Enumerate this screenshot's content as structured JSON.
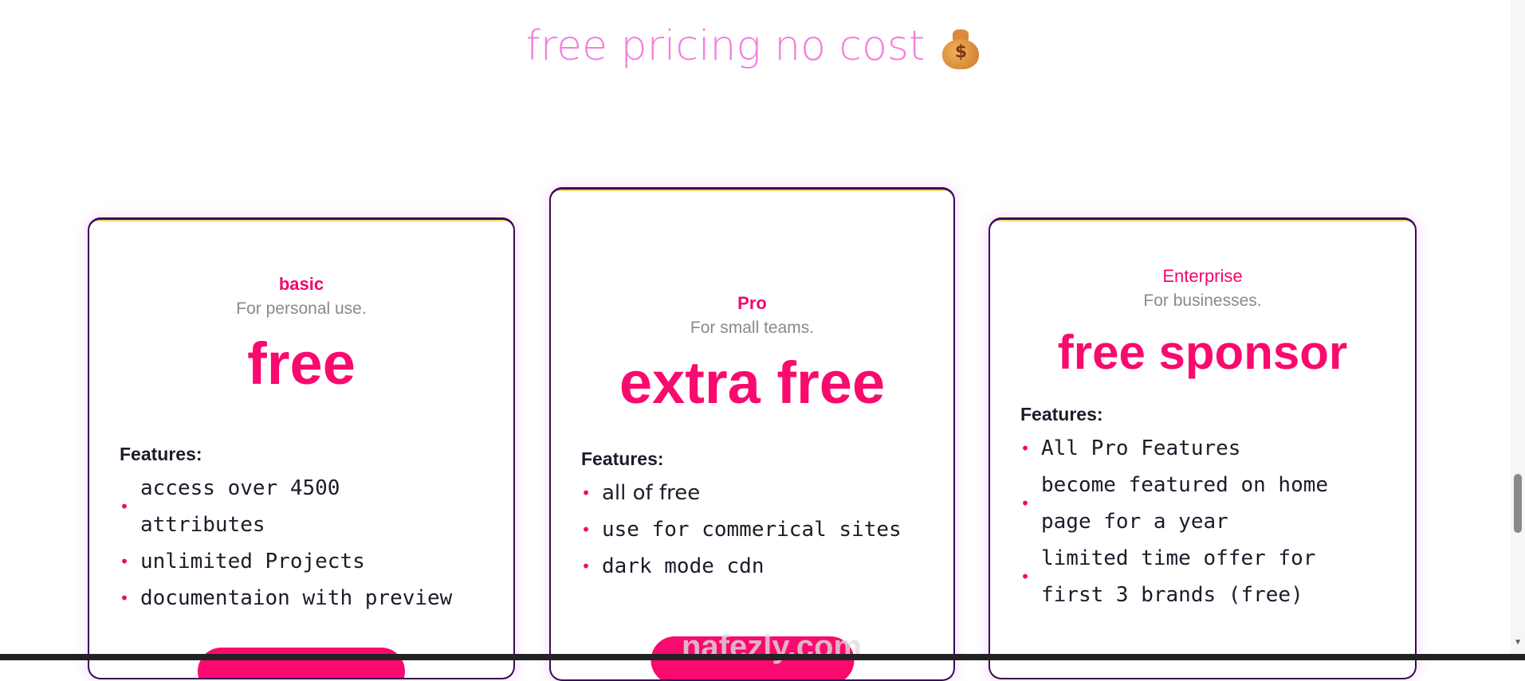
{
  "header": {
    "title": "free pricing no cost",
    "emoji": "money-bag-icon"
  },
  "plans": [
    {
      "tier": "basic",
      "subtitle": "For personal use.",
      "price": "free",
      "features_label": "Features:",
      "features": [
        "access over 4500 attributes",
        "unlimited Projects",
        "documentaion with preview"
      ]
    },
    {
      "tier": "Pro",
      "subtitle": "For small teams.",
      "price": "extra free",
      "features_label": "Features:",
      "features": [
        "all of free",
        "use for commerical sites",
        "dark mode cdn"
      ]
    },
    {
      "tier": "Enterprise",
      "subtitle": "For businesses.",
      "price": "free sponsor",
      "features_label": "Features:",
      "features": [
        "All Pro Features",
        "become featured on home page for a year",
        "limited time offer for first 3 brands (free)"
      ]
    }
  ],
  "watermark": "nafezly.com",
  "colors": {
    "accent": "#fa0a6e",
    "title": "#f37fdb",
    "border": "#3a0a5a"
  }
}
